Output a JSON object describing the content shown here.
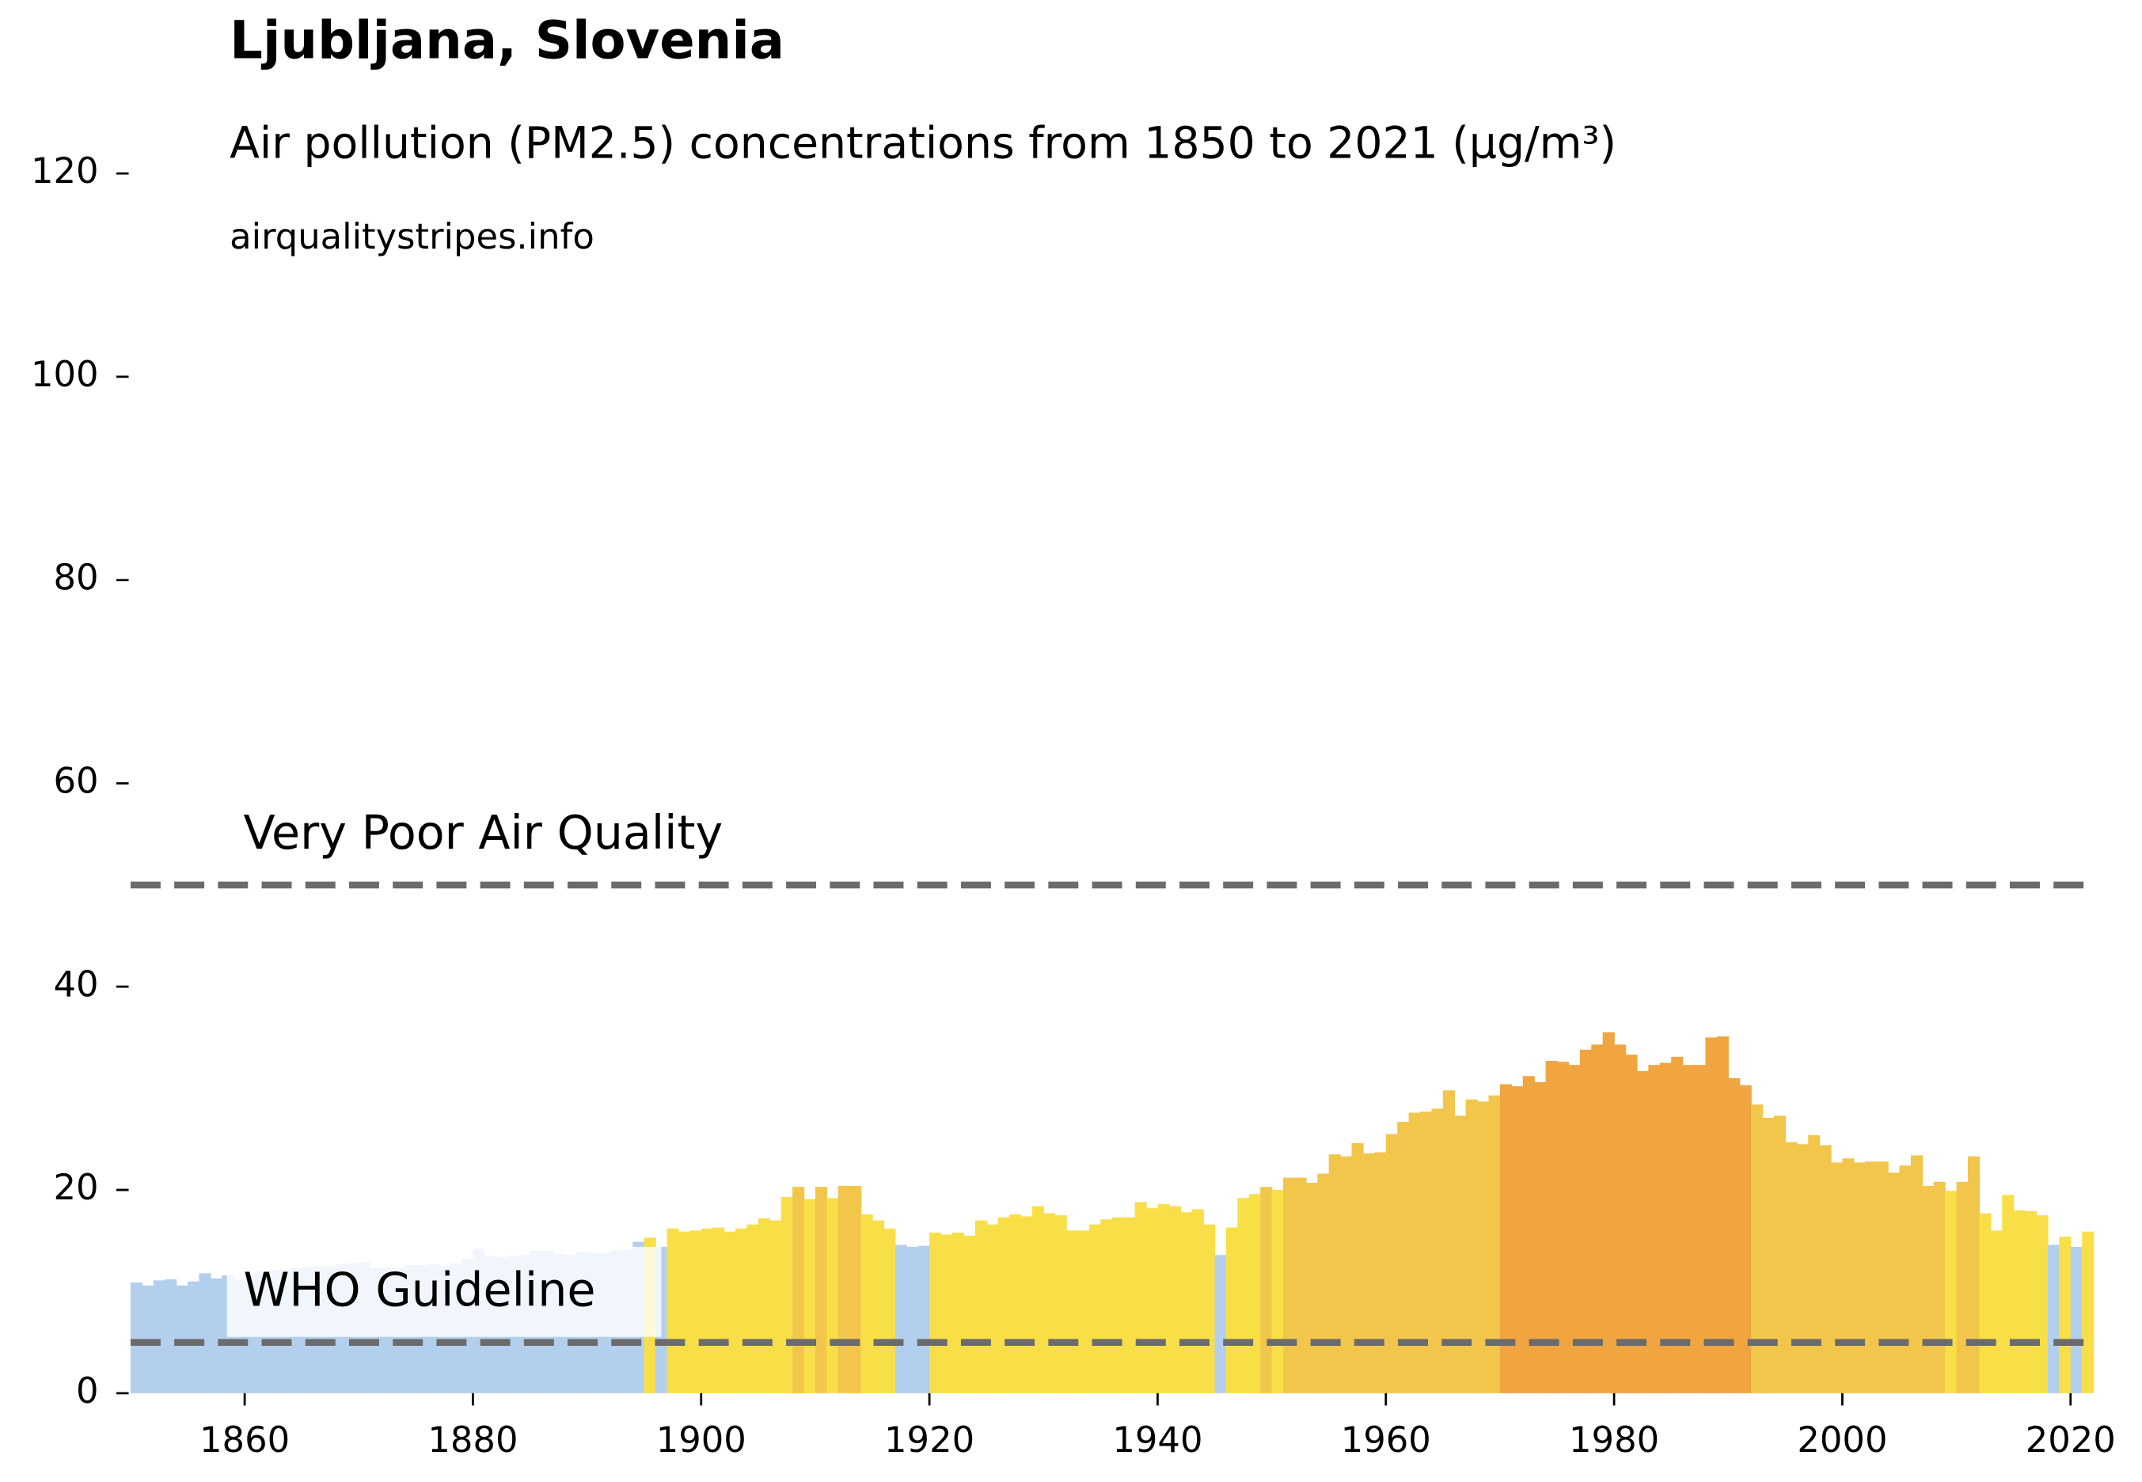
{
  "chart_data": {
    "type": "bar",
    "title": "Ljubljana, Slovenia",
    "subtitle": "Air pollution (PM2.5) concentrations from 1850 to 2021 (µg/m³)",
    "source": "airqualitystripes.info",
    "x": [
      1850,
      1851,
      1852,
      1853,
      1854,
      1855,
      1856,
      1857,
      1858,
      1859,
      1860,
      1861,
      1862,
      1863,
      1864,
      1865,
      1866,
      1867,
      1868,
      1869,
      1870,
      1871,
      1872,
      1873,
      1874,
      1875,
      1876,
      1877,
      1878,
      1879,
      1880,
      1881,
      1882,
      1883,
      1884,
      1885,
      1886,
      1887,
      1888,
      1889,
      1890,
      1891,
      1892,
      1893,
      1894,
      1895,
      1896,
      1897,
      1898,
      1899,
      1900,
      1901,
      1902,
      1903,
      1904,
      1905,
      1906,
      1907,
      1908,
      1909,
      1910,
      1911,
      1912,
      1913,
      1914,
      1915,
      1916,
      1917,
      1918,
      1919,
      1920,
      1921,
      1922,
      1923,
      1924,
      1925,
      1926,
      1927,
      1928,
      1929,
      1930,
      1931,
      1932,
      1933,
      1934,
      1935,
      1936,
      1937,
      1938,
      1939,
      1940,
      1941,
      1942,
      1943,
      1944,
      1945,
      1946,
      1947,
      1948,
      1949,
      1950,
      1951,
      1952,
      1953,
      1954,
      1955,
      1956,
      1957,
      1958,
      1959,
      1960,
      1961,
      1962,
      1963,
      1964,
      1965,
      1966,
      1967,
      1968,
      1969,
      1970,
      1971,
      1972,
      1973,
      1974,
      1975,
      1976,
      1977,
      1978,
      1979,
      1980,
      1981,
      1982,
      1983,
      1984,
      1985,
      1986,
      1987,
      1988,
      1989,
      1990,
      1991,
      1992,
      1993,
      1994,
      1995,
      1996,
      1997,
      1998,
      1999,
      2000,
      2001,
      2002,
      2003,
      2004,
      2005,
      2006,
      2007,
      2008,
      2009,
      2010,
      2011,
      2012,
      2013,
      2014,
      2015,
      2016,
      2017,
      2018,
      2019,
      2020,
      2021
    ],
    "values": [
      10.9,
      10.6,
      11.1,
      11.2,
      10.6,
      11.0,
      11.8,
      11.3,
      11.6,
      11.2,
      11.8,
      12.0,
      12.1,
      12.2,
      12.3,
      12.4,
      12.5,
      12.5,
      12.7,
      12.8,
      12.9,
      12.3,
      12.4,
      12.3,
      12.6,
      12.6,
      12.7,
      12.5,
      12.8,
      13.2,
      14.2,
      13.5,
      13.4,
      13.5,
      13.6,
      14.0,
      14.0,
      13.7,
      13.6,
      13.9,
      13.8,
      13.8,
      14.0,
      14.1,
      14.9,
      15.3,
      14.4,
      16.2,
      15.9,
      16.0,
      16.2,
      16.3,
      15.9,
      16.2,
      16.6,
      17.2,
      17.0,
      19.3,
      20.3,
      19.1,
      20.3,
      19.2,
      20.4,
      20.4,
      17.6,
      17.0,
      16.2,
      14.6,
      14.4,
      14.5,
      15.8,
      15.6,
      15.8,
      15.5,
      17.0,
      16.6,
      17.3,
      17.6,
      17.4,
      18.4,
      17.7,
      17.5,
      16.0,
      16.0,
      16.6,
      17.1,
      17.3,
      17.3,
      18.8,
      18.2,
      18.6,
      18.4,
      17.8,
      18.1,
      16.6,
      13.6,
      16.3,
      19.2,
      19.6,
      20.3,
      20.0,
      21.2,
      21.2,
      20.7,
      21.6,
      23.5,
      23.3,
      24.6,
      23.6,
      23.7,
      25.5,
      26.7,
      27.6,
      27.7,
      28.0,
      29.8,
      27.3,
      28.9,
      28.7,
      29.3,
      30.4,
      30.2,
      31.2,
      30.6,
      32.7,
      32.6,
      32.3,
      33.8,
      34.3,
      35.5,
      34.3,
      33.3,
      31.7,
      32.3,
      32.5,
      33.1,
      32.3,
      32.3,
      35.0,
      35.1,
      31.0,
      30.3,
      28.4,
      27.1,
      27.3,
      24.7,
      24.5,
      25.4,
      24.4,
      22.7,
      23.1,
      22.7,
      22.8,
      22.8,
      21.7,
      22.4,
      23.4,
      20.4,
      20.8,
      19.9,
      20.8,
      23.3,
      17.7,
      16.0,
      19.5,
      18.0,
      17.9,
      17.5,
      14.6,
      15.4,
      14.4,
      15.9
    ],
    "colors": [
      "#b3cfee",
      "#b3cfee",
      "#b3cfee",
      "#b3cfee",
      "#b3cfee",
      "#b3cfee",
      "#b3cfee",
      "#b3cfee",
      "#b3cfee",
      "#b3cfee",
      "#b3cfee",
      "#b3cfee",
      "#b3cfee",
      "#b3cfee",
      "#b3cfee",
      "#b3cfee",
      "#b3cfee",
      "#b3cfee",
      "#b3cfee",
      "#b3cfee",
      "#b3cfee",
      "#b3cfee",
      "#b3cfee",
      "#b3cfee",
      "#b3cfee",
      "#b3cfee",
      "#b3cfee",
      "#b3cfee",
      "#b3cfee",
      "#b3cfee",
      "#b3cfee",
      "#b3cfee",
      "#b3cfee",
      "#b3cfee",
      "#b3cfee",
      "#b3cfee",
      "#b3cfee",
      "#b3cfee",
      "#b3cfee",
      "#b3cfee",
      "#b3cfee",
      "#b3cfee",
      "#b3cfee",
      "#b3cfee",
      "#b3cfee",
      "#f8df47",
      "#b3cfee",
      "#f8df47",
      "#f8df47",
      "#f8df47",
      "#f8df47",
      "#f8df47",
      "#f8df47",
      "#f8df47",
      "#f8df47",
      "#f8df47",
      "#f8df47",
      "#f8df47",
      "#f2c64b",
      "#f8df47",
      "#f2c64b",
      "#f8df47",
      "#f2c64b",
      "#f2c64b",
      "#f8df47",
      "#f8df47",
      "#f8df47",
      "#b3cfee",
      "#b3cfee",
      "#b3cfee",
      "#f8df47",
      "#f8df47",
      "#f8df47",
      "#f8df47",
      "#f8df47",
      "#f8df47",
      "#f8df47",
      "#f8df47",
      "#f8df47",
      "#f8df47",
      "#f8df47",
      "#f8df47",
      "#f8df47",
      "#f8df47",
      "#f8df47",
      "#f8df47",
      "#f8df47",
      "#f8df47",
      "#f8df47",
      "#f8df47",
      "#f8df47",
      "#f8df47",
      "#f8df47",
      "#f8df47",
      "#f8df47",
      "#b3cfee",
      "#f8df47",
      "#f8df47",
      "#f8df47",
      "#f2c64b",
      "#f8df47",
      "#f2c64b",
      "#f2c64b",
      "#f2c64b",
      "#f2c64b",
      "#f2c64b",
      "#f2c64b",
      "#f2c64b",
      "#f2c64b",
      "#f2c64b",
      "#f2c64b",
      "#f2c64b",
      "#f2c64b",
      "#f2c64b",
      "#f2c64b",
      "#f2c64b",
      "#f2c64b",
      "#f2c64b",
      "#f2c64b",
      "#f2c64b",
      "#f0a541",
      "#f0a541",
      "#f0a541",
      "#f0a541",
      "#f0a541",
      "#f0a541",
      "#f0a541",
      "#f0a541",
      "#f0a541",
      "#f0a541",
      "#f0a541",
      "#f0a541",
      "#f0a541",
      "#f0a541",
      "#f0a541",
      "#f0a541",
      "#f0a541",
      "#f0a541",
      "#f0a541",
      "#f0a541",
      "#f0a541",
      "#f0a541",
      "#f2c64b",
      "#f2c64b",
      "#f2c64b",
      "#f2c64b",
      "#f2c64b",
      "#f2c64b",
      "#f2c64b",
      "#f2c64b",
      "#f2c64b",
      "#f2c64b",
      "#f2c64b",
      "#f2c64b",
      "#f2c64b",
      "#f2c64b",
      "#f2c64b",
      "#f2c64b",
      "#f2c64b",
      "#f8df47",
      "#f2c64b",
      "#f2c64b",
      "#f8df47",
      "#f8df47",
      "#f8df47",
      "#f8df47",
      "#f8df47",
      "#f8df47",
      "#b3cfee",
      "#f8df47",
      "#b3cfee",
      "#f8df47"
    ],
    "reference_lines": [
      {
        "label": "Very Poor Air Quality",
        "value": 50
      },
      {
        "label": "WHO Guideline",
        "value": 5
      }
    ],
    "reference_color": "#6b6b6b",
    "xlim": [
      1850,
      2022
    ],
    "xticks": [
      1860,
      1880,
      1900,
      1920,
      1940,
      1960,
      1980,
      2000,
      2020
    ],
    "ylim": [
      0,
      120
    ],
    "yticks": [
      0,
      20,
      40,
      60,
      80,
      100,
      120
    ],
    "grid": false
  }
}
